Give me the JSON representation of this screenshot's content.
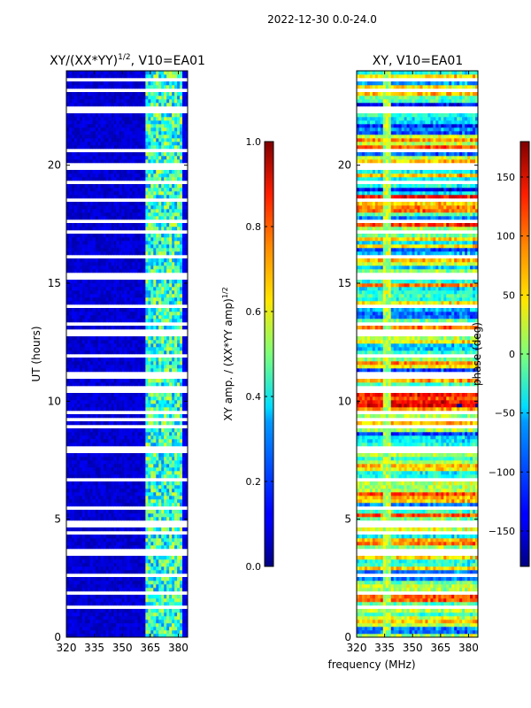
{
  "suptitle": "2022-12-30 0.0-24.0",
  "colors": {
    "background": "#ffffff",
    "dark_blue": "#00008f",
    "axis": "#000000"
  },
  "chart_data": [
    {
      "type": "heatmap",
      "title": "XY/(XX*YY)",
      "title_exponent": "1/2",
      "title_suffix": ", V10=EA01",
      "xlabel": "",
      "ylabel": "UT (hours)",
      "x_range": [
        320,
        385
      ],
      "y_range": [
        0,
        24
      ],
      "x_ticks": [
        320,
        335,
        350,
        365,
        380
      ],
      "y_ticks": [
        0,
        5,
        10,
        15,
        20
      ],
      "colormap": "jet",
      "description": "Normalized XY amplitude: mostly low (~0.05) across 320-362 MHz, elevated (~0.3-0.6) in 362-382 MHz band; white rows are flagged/missing time samples.",
      "colorbar": {
        "label": "XY amp. / (XX*YY amp)",
        "label_exponent": "1/2",
        "range": [
          0.0,
          1.0
        ],
        "ticks": [
          0.0,
          0.2,
          0.4,
          0.6,
          0.8,
          1.0
        ],
        "tick_labels": [
          "0.0",
          "0.2",
          "0.4",
          "0.6",
          "0.8",
          "1.0"
        ]
      }
    },
    {
      "type": "heatmap",
      "title": "XY, V10=EA01",
      "xlabel": "frequency (MHz)",
      "ylabel": "",
      "x_range": [
        320,
        385
      ],
      "y_range": [
        0,
        24
      ],
      "x_ticks": [
        320,
        335,
        350,
        365,
        380
      ],
      "y_ticks": [
        0,
        5,
        10,
        15,
        20
      ],
      "colormap": "jet",
      "description": "XY phase in degrees spanning -180 to 180, noisy mixture with coherent bands; white rows are flagged time samples.",
      "colorbar": {
        "label": "phase (deg)",
        "range": [
          -180,
          180
        ],
        "ticks": [
          -150,
          -100,
          -50,
          0,
          50,
          100,
          150
        ],
        "tick_labels": [
          "−150",
          "−100",
          "−50",
          "0",
          "50",
          "100",
          "150"
        ]
      }
    }
  ]
}
